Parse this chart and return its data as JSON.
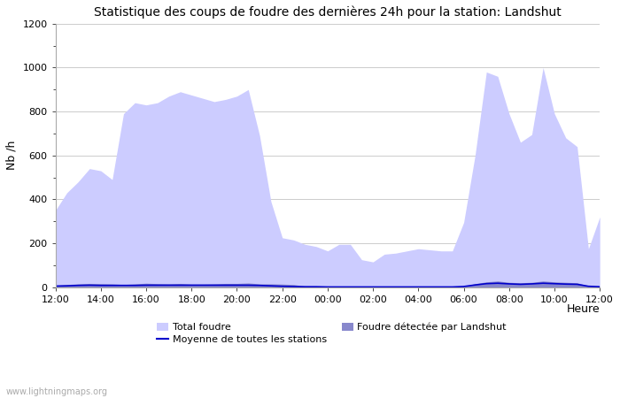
{
  "title": "Statistique des coups de foudre des dernières 24h pour la station: Landshut",
  "xlabel": "Heure",
  "ylabel": "Nb /h",
  "watermark": "www.lightningmaps.org",
  "ylim": [
    0,
    1200
  ],
  "yticks": [
    0,
    200,
    400,
    600,
    800,
    1000,
    1200
  ],
  "xtick_labels": [
    "12:00",
    "14:00",
    "16:00",
    "18:00",
    "20:00",
    "22:00",
    "00:00",
    "02:00",
    "04:00",
    "06:00",
    "08:00",
    "10:00",
    "12:00"
  ],
  "total_color": "#ccccff",
  "local_color": "#8888cc",
  "mean_color": "#0000cc",
  "bg_color": "#ffffff",
  "grid_color": "#cccccc",
  "title_fontsize": 10,
  "legend_total_label": "Total foudre",
  "legend_local_label": "Foudre détectée par Landshut",
  "legend_mean_label": "Moyenne de toutes les stations",
  "total_foudre": [
    350,
    430,
    480,
    540,
    530,
    490,
    790,
    840,
    830,
    840,
    870,
    890,
    875,
    860,
    845,
    855,
    870,
    900,
    690,
    390,
    225,
    215,
    195,
    185,
    165,
    195,
    195,
    125,
    115,
    150,
    155,
    165,
    175,
    170,
    165,
    165,
    295,
    600,
    980,
    960,
    790,
    660,
    695,
    1000,
    790,
    680,
    640,
    175,
    320
  ],
  "local_foudre": [
    8,
    12,
    15,
    17,
    16,
    15,
    12,
    15,
    18,
    16,
    15,
    17,
    14,
    14,
    15,
    17,
    17,
    19,
    15,
    15,
    14,
    12,
    4,
    3,
    2,
    2,
    2,
    2,
    2,
    2,
    2,
    2,
    2,
    2,
    2,
    2,
    4,
    16,
    24,
    28,
    22,
    20,
    22,
    28,
    24,
    22,
    20,
    6,
    4
  ],
  "mean_foudre": [
    5,
    6,
    8,
    9,
    8,
    8,
    8,
    8,
    9,
    9,
    9,
    9,
    9,
    9,
    9,
    9,
    9,
    9,
    8,
    6,
    4,
    3,
    2,
    2,
    1,
    1,
    1,
    1,
    1,
    1,
    1,
    1,
    1,
    1,
    1,
    1,
    3,
    10,
    16,
    18,
    15,
    13,
    15,
    18,
    16,
    14,
    13,
    4,
    2
  ]
}
